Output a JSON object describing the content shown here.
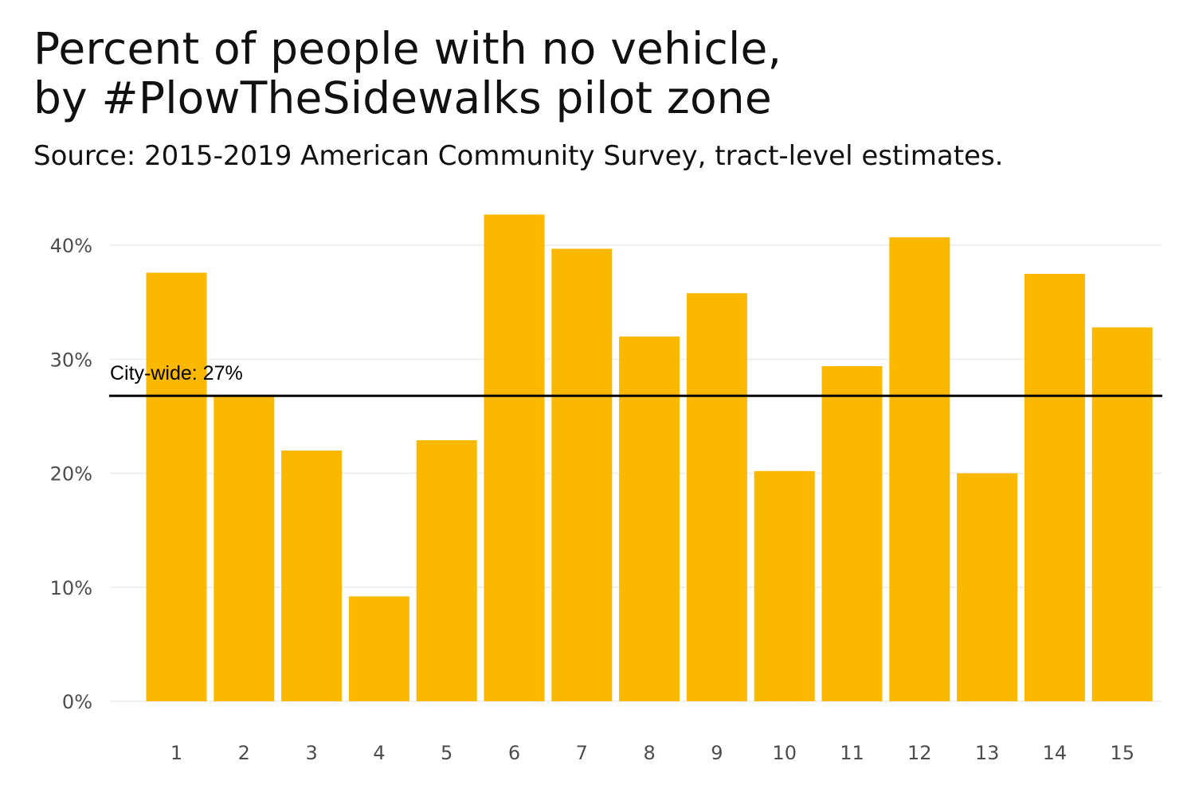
{
  "title_lines": [
    "Percent of people with no vehicle,",
    "by #PlowTheSidewalks pilot zone"
  ],
  "subtitle": "Source: 2015-2019 American Community Survey, tract-level estimates.",
  "colors": {
    "bar": "#fbb800",
    "gridline": "#ebebeb",
    "tick_text": "#4d4d4d",
    "reference_line": "#000000"
  },
  "chart_data": {
    "type": "bar",
    "title": "Percent of people with no vehicle, by #PlowTheSidewalks pilot zone",
    "subtitle": "Source: 2015-2019 American Community Survey, tract-level estimates.",
    "xlabel": "",
    "ylabel": "",
    "categories": [
      "1",
      "2",
      "3",
      "4",
      "5",
      "6",
      "7",
      "8",
      "9",
      "10",
      "11",
      "12",
      "13",
      "14",
      "15"
    ],
    "values": [
      37.6,
      26.8,
      22.0,
      9.2,
      22.9,
      42.7,
      39.7,
      32.0,
      35.8,
      20.2,
      29.4,
      40.7,
      20.0,
      37.5,
      32.8
    ],
    "ylim": [
      0,
      44
    ],
    "yticks": [
      0,
      10,
      20,
      30,
      40
    ],
    "ytick_labels": [
      "0%",
      "10%",
      "20%",
      "30%",
      "40%"
    ],
    "grid": true,
    "legend": "none",
    "reference_line": {
      "value": 26.8,
      "label": "City-wide: 27%"
    }
  }
}
